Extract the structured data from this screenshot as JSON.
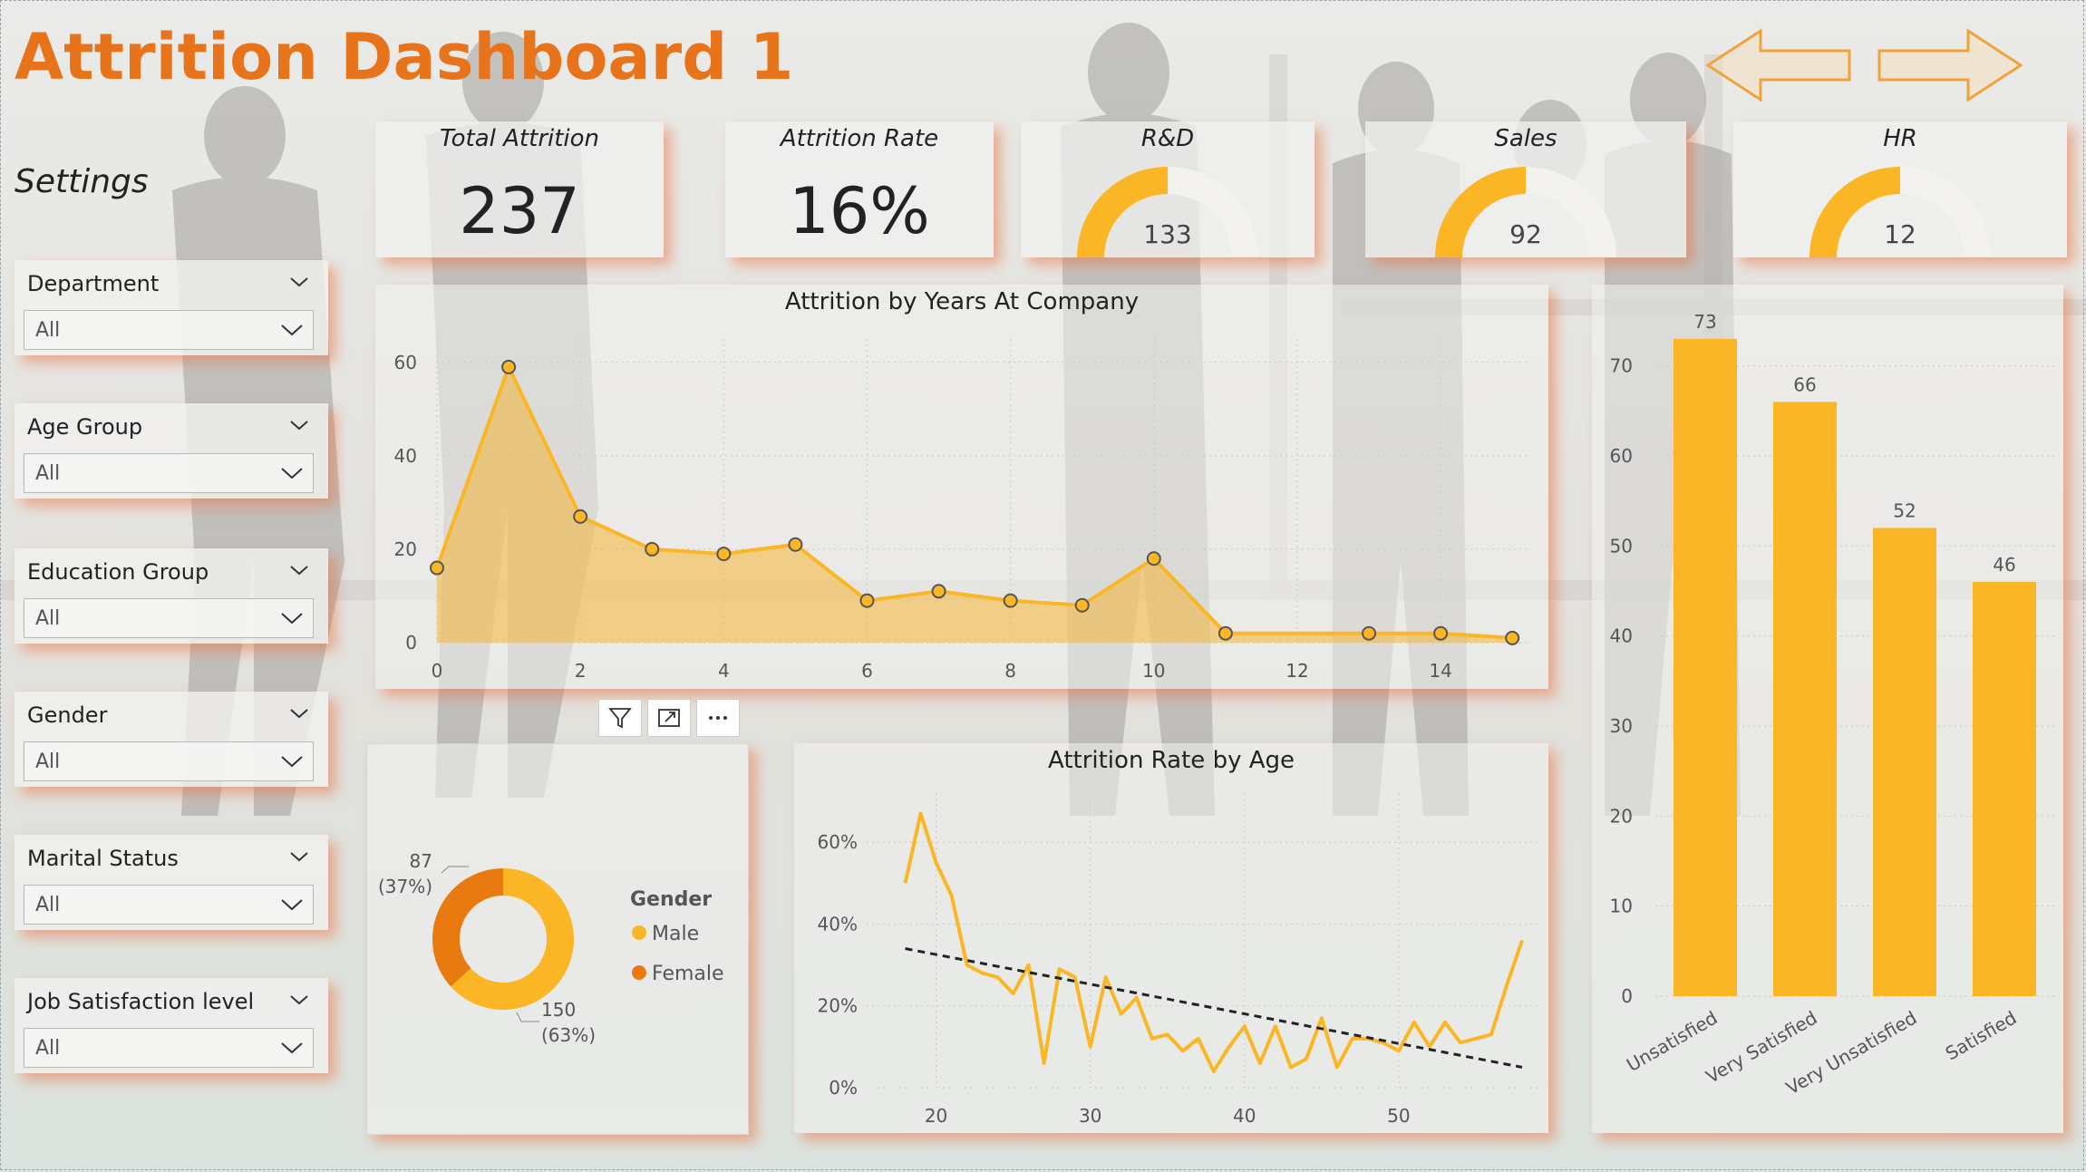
{
  "title": "Attrition Dashboard 1",
  "settings_label": "Settings",
  "colors": {
    "accent": "#e7731a",
    "series": "#fbb625",
    "female": "#e87a0f",
    "gauge_bg": "#f3f2ef"
  },
  "icons": {
    "prev": "left-arrow-icon",
    "next": "right-arrow-icon",
    "filter": "filter-icon",
    "focus": "focus-mode-icon",
    "more": "more-options-icon",
    "chevron": "chevron-down-icon"
  },
  "kpis": [
    {
      "label": "Total Attrition",
      "value": "237"
    },
    {
      "label": "Attrition Rate",
      "value": "16%"
    }
  ],
  "gauges": [
    {
      "label": "R&D",
      "value": "133",
      "fraction": 0.5
    },
    {
      "label": "Sales",
      "value": "92",
      "fraction": 0.5
    },
    {
      "label": "HR",
      "value": "12",
      "fraction": 0.5
    }
  ],
  "slicers": [
    {
      "title": "Department",
      "value": "All"
    },
    {
      "title": "Age Group",
      "value": "All"
    },
    {
      "title": "Education Group",
      "value": "All"
    },
    {
      "title": "Gender",
      "value": "All"
    },
    {
      "title": "Marital Status",
      "value": "All"
    },
    {
      "title": "Job Satisfaction level",
      "value": "All"
    }
  ],
  "chart_data": [
    {
      "type": "area",
      "title": "Attrition by Years At Company",
      "x": [
        0,
        1,
        2,
        3,
        4,
        5,
        6,
        7,
        8,
        9,
        10,
        11,
        13,
        14,
        15
      ],
      "y": [
        16,
        59,
        27,
        20,
        19,
        21,
        9,
        11,
        9,
        8,
        18,
        2,
        2,
        2,
        1
      ],
      "x_ticks": [
        "0",
        "2",
        "4",
        "6",
        "8",
        "10",
        "12",
        "14"
      ],
      "y_ticks": [
        "0",
        "20",
        "40",
        "60"
      ],
      "xlim": [
        0,
        15.2
      ],
      "ylim": [
        0,
        65
      ],
      "grid": true
    },
    {
      "type": "pie",
      "legend_title": "Gender",
      "categories": [
        "Male",
        "Female"
      ],
      "values": [
        150,
        87
      ],
      "labels": [
        {
          "value": "150",
          "pct": "(63%)"
        },
        {
          "value": "87",
          "pct": "(37%)"
        }
      ],
      "legend_position": "right"
    },
    {
      "type": "line",
      "title": "Attrition Rate by Age",
      "x": [
        18,
        19,
        20,
        21,
        22,
        23,
        24,
        25,
        26,
        27,
        28,
        29,
        30,
        31,
        32,
        33,
        34,
        35,
        36,
        37,
        38,
        39,
        40,
        41,
        42,
        43,
        44,
        45,
        46,
        47,
        48,
        49,
        50,
        51,
        52,
        53,
        54,
        55,
        56,
        57,
        58
      ],
      "y": [
        0.5,
        0.67,
        0.55,
        0.47,
        0.3,
        0.28,
        0.27,
        0.23,
        0.3,
        0.06,
        0.29,
        0.27,
        0.1,
        0.27,
        0.18,
        0.22,
        0.12,
        0.13,
        0.09,
        0.12,
        0.04,
        0.1,
        0.15,
        0.06,
        0.15,
        0.05,
        0.07,
        0.17,
        0.05,
        0.12,
        0.12,
        0.11,
        0.09,
        0.16,
        0.1,
        0.16,
        0.11,
        0.12,
        0.13,
        0.25,
        0.36
      ],
      "trendline": {
        "from": [
          18,
          0.34
        ],
        "to": [
          58,
          0.05
        ]
      },
      "x_ticks": [
        "20",
        "30",
        "40",
        "50"
      ],
      "y_ticks": [
        "0%",
        "20%",
        "40%",
        "60%"
      ],
      "xlim": [
        15.5,
        59
      ],
      "ylim": [
        0,
        0.72
      ],
      "grid": true
    },
    {
      "type": "bar",
      "categories": [
        "Unsatisfied",
        "Very Satisfied",
        "Very Unsatisfied",
        "Satisfied"
      ],
      "values": [
        73,
        66,
        52,
        46
      ],
      "value_labels": [
        "73",
        "66",
        "52",
        "46"
      ],
      "y_ticks": [
        "0",
        "10",
        "20",
        "30",
        "40",
        "50",
        "60",
        "70"
      ],
      "ylim": [
        0,
        76
      ],
      "grid": true
    }
  ]
}
